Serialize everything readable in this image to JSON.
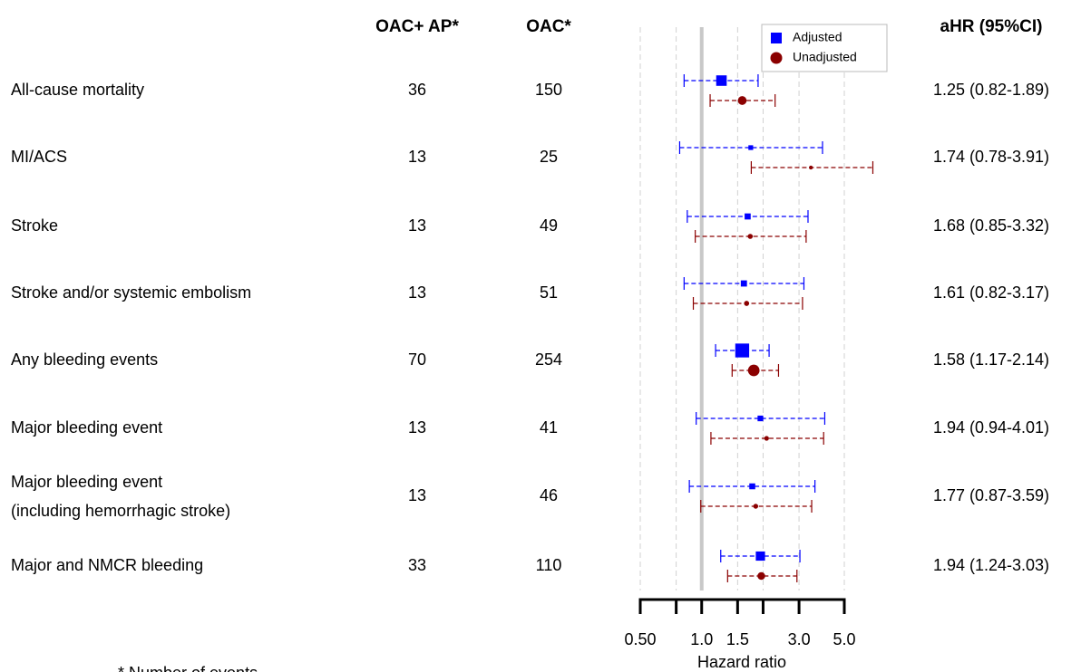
{
  "chart_data": {
    "type": "forest",
    "columns": [
      "OAC+ AP*",
      "OAC*"
    ],
    "estimate_header": "aHR (95%CI)",
    "categories": [
      "All-cause mortality",
      "MI/ACS",
      "Stroke",
      "Stroke and/or systemic embolism",
      "Any bleeding events",
      "Major bleeding event",
      [
        "Major bleeding event",
        " (including hemorrhagic stroke)"
      ],
      "Major and NMCR bleeding"
    ],
    "counts": [
      [
        36,
        13,
        13,
        13,
        70,
        13,
        13,
        33
      ],
      [
        150,
        25,
        49,
        51,
        254,
        41,
        46,
        110
      ]
    ],
    "series": [
      {
        "name": "Adjusted",
        "color": "#0000ff",
        "marker": "square",
        "values": [
          1.25,
          1.74,
          1.68,
          1.61,
          1.58,
          1.94,
          1.77,
          1.94
        ],
        "lower": [
          0.82,
          0.78,
          0.85,
          0.82,
          1.17,
          0.94,
          0.87,
          1.24
        ],
        "upper": [
          1.89,
          3.91,
          3.32,
          3.17,
          2.14,
          4.01,
          3.59,
          3.03
        ],
        "value_labels": [
          "1.25 (0.82-1.89)",
          "1.74 (0.78-3.91)",
          "1.68 (0.85-3.32)",
          "1.61 (0.82-3.17)",
          "1.58 (1.17-2.14)",
          "1.94 (0.94-4.01)",
          "1.77 (0.87-3.59)",
          "1.94 (1.24-3.03)"
        ]
      },
      {
        "name": "Unadjusted",
        "color": "#8b0000",
        "marker": "circle",
        "values": [
          1.58,
          3.43,
          1.73,
          1.66,
          1.8,
          2.08,
          1.84,
          1.96
        ],
        "lower": [
          1.1,
          1.75,
          0.93,
          0.91,
          1.41,
          1.11,
          0.99,
          1.34
        ],
        "upper": [
          2.29,
          6.9,
          3.25,
          3.12,
          2.38,
          3.96,
          3.46,
          2.93
        ]
      }
    ],
    "xlabel": "Hazard ratio",
    "xscale": "log",
    "xlim": [
      0.5,
      5
    ],
    "xticks": [
      {
        "value": 0.5,
        "label": "0.50"
      },
      {
        "value": 0.75,
        "label": null
      },
      {
        "value": 1,
        "label": "1.0"
      },
      1.5,
      {
        "value": 2,
        "label": null
      },
      {
        "value": 3,
        "label": "3.0"
      },
      {
        "value": 5,
        "label": "5.0"
      }
    ],
    "ref_line": 1,
    "grid": true,
    "legend": "top-right",
    "footnote": "* Number of events"
  }
}
